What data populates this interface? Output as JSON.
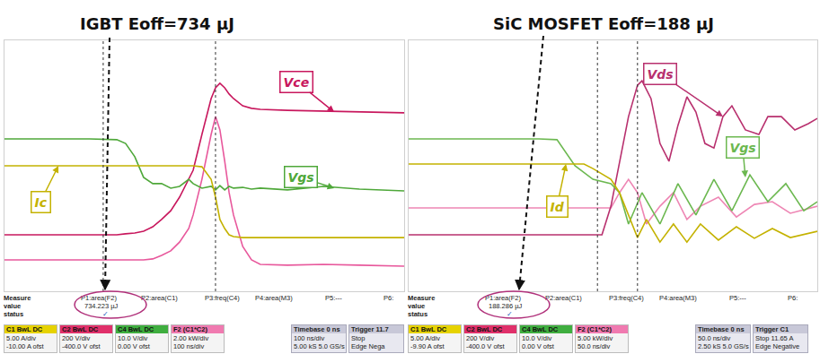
{
  "chart_data": [
    {
      "type": "line",
      "title": "IGBT Eoff=734 µJ",
      "xlim": [
        0,
        10
      ],
      "ylim": [
        0,
        10
      ],
      "grid": false,
      "tick_labels": false,
      "cursors": [
        2.47,
        5.28
      ],
      "series": [
        {
          "color": "#e8589c",
          "x": [
            0,
            2.13,
            2.81,
            3.03,
            3.26,
            3.48,
            3.71,
            3.93,
            4.16,
            4.38,
            4.61,
            4.72,
            4.94,
            5.17,
            5.28,
            5.39,
            5.51,
            5.62,
            5.73,
            5.96,
            6.18,
            6.4,
            7.08,
            7.98,
            8.88,
            10
          ],
          "values": [
            1.25,
            1.25,
            1.25,
            1.25,
            1.25,
            1.25,
            1.29,
            1.43,
            1.61,
            1.96,
            2.5,
            3.04,
            4.46,
            6.25,
            6.96,
            6.43,
            5.18,
            3.93,
            3.04,
            1.79,
            1.25,
            1.07,
            1.04,
            1.07,
            1.04,
            1.0
          ]
        },
        {
          "name": "Vce",
          "color": "#c8175d",
          "label": [
            8.25,
            7.14
          ],
          "x": [
            0,
            2.13,
            2.81,
            3.03,
            3.26,
            3.48,
            3.71,
            3.93,
            4.16,
            4.38,
            4.61,
            4.72,
            4.94,
            5.17,
            5.28,
            5.39,
            5.51,
            5.62,
            5.73,
            5.96,
            6.18,
            6.4,
            7.08,
            7.98,
            8.88,
            10
          ],
          "values": [
            2.25,
            2.25,
            2.25,
            2.29,
            2.32,
            2.39,
            2.57,
            2.86,
            3.21,
            3.75,
            4.46,
            4.82,
            6.25,
            7.68,
            8.11,
            8.29,
            8.11,
            7.86,
            7.68,
            7.39,
            7.29,
            7.25,
            7.21,
            7.18,
            7.14,
            7.11
          ]
        },
        {
          "name": "Vgs",
          "color": "#4fa83a",
          "label": [
            8.25,
            4.11
          ],
          "x": [
            0,
            2.13,
            2.81,
            3.03,
            3.26,
            3.48,
            3.71,
            3.93,
            4.16,
            4.38,
            4.61,
            4.72,
            4.94,
            5.17,
            5.28,
            5.39,
            5.51,
            5.62,
            5.73,
            5.96,
            6.18,
            6.4,
            7.08,
            7.98,
            8.88,
            10
          ],
          "values": [
            6.07,
            6.07,
            6.04,
            5.89,
            5.36,
            4.54,
            4.29,
            4.29,
            4.11,
            4.18,
            4.46,
            4.29,
            4.11,
            4.18,
            4.04,
            4.21,
            4.04,
            4.18,
            4.11,
            4.14,
            4.07,
            4.11,
            4.04,
            4.18,
            4.07,
            4.0
          ]
        },
        {
          "name": "Ic",
          "color": "#c4b200",
          "label": [
            1.35,
            5.0
          ],
          "x": [
            0,
            4.72,
            4.94,
            5.17,
            5.28,
            5.39,
            5.51,
            5.62,
            5.73,
            5.96,
            10
          ],
          "values": [
            5.0,
            5.0,
            4.96,
            4.46,
            3.75,
            2.86,
            2.5,
            2.25,
            2.18,
            2.14,
            2.14
          ]
        }
      ],
      "panel": {
        "headers": [
          "Measure",
          "value",
          "status"
        ],
        "measurements": [
          {
            "label": "P1:area(F2)",
            "value": "734.223 µJ",
            "status": "✓"
          },
          {
            "label": "P2:area(C1)"
          },
          {
            "label": "P3:freq(C4)"
          },
          {
            "label": "P4:area(M3)"
          },
          {
            "label": "P5:---"
          },
          {
            "label": "P6:"
          }
        ],
        "channels": [
          {
            "name": "C1",
            "tag": "BwL DC",
            "color": "#e6d200",
            "lines": [
              "5.00 A/div",
              "-10.00 A ofst"
            ]
          },
          {
            "name": "C2",
            "tag": "BwL DC",
            "color": "#e0306a",
            "lines": [
              "200 V/div",
              "-400.0 V ofst"
            ]
          },
          {
            "name": "C4",
            "tag": "BwL DC",
            "color": "#3fae3f",
            "lines": [
              "10.0 V/div",
              "0.00 V ofst"
            ]
          },
          {
            "name": "F2",
            "tag": "(C1*C2)",
            "color": "#f07ab0",
            "lines": [
              "2.00 kW/div",
              "100 ns/div"
            ]
          }
        ],
        "timebase": {
          "label": "Timebase",
          "value": "0 ns",
          "lines": [
            "100 ns/div",
            "5.00 kS 5.0 GS/s"
          ]
        },
        "trigger": {
          "label": "Trigger",
          "value": "11.7",
          "lines": [
            "Stop",
            "Edge Nega"
          ]
        }
      }
    },
    {
      "type": "line",
      "title": "SiC MOSFET Eoff=188 µJ",
      "xlim": [
        0,
        10
      ],
      "ylim": [
        0,
        10
      ],
      "grid": false,
      "tick_labels": false,
      "cursors": [
        4.62,
        5.6
      ],
      "series": [
        {
          "color": "#ee86b4",
          "x": [
            0,
            4.95,
            5.16,
            5.38,
            5.6,
            5.82,
            6.15,
            6.48,
            6.81,
            7.14,
            7.58,
            8.02,
            8.46,
            8.9,
            9.34,
            10
          ],
          "values": [
            3.32,
            3.32,
            3.93,
            4.46,
            3.93,
            2.68,
            3.39,
            3.93,
            2.86,
            3.39,
            3.75,
            2.96,
            3.46,
            3.57,
            3.11,
            3.39
          ]
        },
        {
          "name": "Vds",
          "color": "#b8306e",
          "label": [
            7.69,
            6.96
          ],
          "x": [
            0,
            4.73,
            4.95,
            5.16,
            5.38,
            5.6,
            5.71,
            5.93,
            6.15,
            6.37,
            6.59,
            6.81,
            7.03,
            7.25,
            7.47,
            7.69,
            7.91,
            8.24,
            8.57,
            8.79,
            9.12,
            9.45,
            9.78,
            10
          ],
          "values": [
            2.25,
            2.25,
            3.39,
            5.18,
            6.96,
            8.21,
            8.39,
            7.68,
            5.89,
            5.18,
            6.61,
            7.75,
            7.14,
            5.89,
            5.71,
            6.96,
            7.39,
            6.43,
            6.25,
            6.96,
            6.96,
            6.43,
            6.68,
            6.89
          ]
        },
        {
          "name": "Vgs",
          "color": "#6cb850",
          "label": [
            8.24,
            4.54
          ],
          "x": [
            0,
            3.19,
            3.63,
            4.07,
            4.51,
            4.95,
            5.16,
            5.38,
            5.71,
            6.15,
            6.59,
            7.03,
            7.47,
            7.91,
            8.35,
            8.79,
            9.23,
            9.67,
            10
          ],
          "values": [
            6.07,
            6.07,
            6.04,
            5.0,
            4.46,
            4.29,
            3.93,
            2.68,
            3.93,
            2.68,
            4.29,
            3.04,
            4.46,
            3.21,
            4.64,
            3.57,
            4.29,
            3.21,
            3.57
          ]
        },
        {
          "name": "Id",
          "color": "#c4b200",
          "label": [
            3.85,
            5.07
          ],
          "x": [
            0,
            4.29,
            4.51,
            4.95,
            5.16,
            5.38,
            5.6,
            5.82,
            6.15,
            6.48,
            6.81,
            7.14,
            7.58,
            8.02,
            8.46,
            8.9,
            9.34,
            10
          ],
          "values": [
            5.07,
            5.07,
            4.89,
            4.46,
            3.93,
            3.04,
            2.14,
            2.86,
            1.96,
            2.68,
            1.96,
            2.68,
            2.04,
            2.57,
            2.11,
            2.5,
            2.14,
            2.39
          ]
        }
      ],
      "panel": {
        "headers": [
          "Measure",
          "value",
          "status"
        ],
        "measurements": [
          {
            "label": "P1:area(F2)",
            "value": "188.286 µJ",
            "status": "✓"
          },
          {
            "label": "P2:area(C1)"
          },
          {
            "label": "P3:freq(C4)"
          },
          {
            "label": "P4:area(M3)"
          },
          {
            "label": "P5:---"
          },
          {
            "label": "P6:"
          }
        ],
        "channels": [
          {
            "name": "C1",
            "tag": "BwL DC",
            "color": "#e6d200",
            "lines": [
              "5.00 A/div",
              "-9.90 A ofst"
            ]
          },
          {
            "name": "C2",
            "tag": "BwL DC",
            "color": "#e0306a",
            "lines": [
              "200 V/div",
              "-400.0 V ofst"
            ]
          },
          {
            "name": "C4",
            "tag": "BwL DC",
            "color": "#3fae3f",
            "lines": [
              "10.0 V/div",
              "0.00 V ofst"
            ]
          },
          {
            "name": "F2",
            "tag": "(C1*C2)",
            "color": "#f07ab0",
            "lines": [
              "5.00 kW/div",
              "50.0 ns/div"
            ]
          }
        ],
        "timebase": {
          "label": "Timebase",
          "value": "0 ns",
          "lines": [
            "50.0 ns/div",
            "2.50 kS 5.0 GS/s"
          ]
        },
        "trigger": {
          "label": "Trigger",
          "value": "C1",
          "lines": [
            "Stop 11.65 A",
            "Edge Negative"
          ]
        }
      }
    }
  ]
}
